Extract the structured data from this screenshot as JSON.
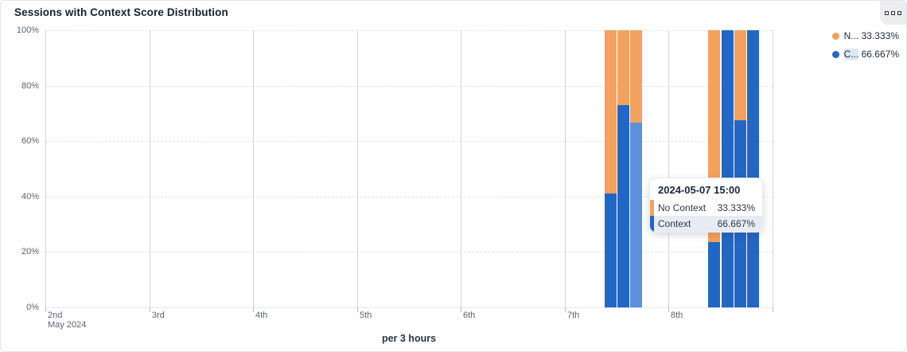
{
  "card": {
    "title": "Sessions with Context Score Distribution",
    "corner_icon": "grid-menu-icon"
  },
  "legend": {
    "items": [
      {
        "name_truncated": "N...",
        "value": "33.333%",
        "color": "#F4A15D",
        "highlighted": false
      },
      {
        "name_truncated": "C...",
        "value": "66.667%",
        "color": "#2267C5",
        "highlighted": true
      }
    ]
  },
  "tooltip": {
    "title": "2024-05-07 15:00",
    "rows": [
      {
        "label": "No Context",
        "value": "33.333%",
        "color": "#F4A15D",
        "highlighted": false
      },
      {
        "label": "Context",
        "value": "66.667%",
        "color": "#2267C5",
        "highlighted": true
      }
    ]
  },
  "chart_data": {
    "type": "bar",
    "stacked": true,
    "unit": "percent",
    "title": "Sessions with Context Score Distribution",
    "xlabel": "per 3 hours",
    "ylabel": "",
    "ylim": [
      0,
      100
    ],
    "grid": true,
    "legend_position": "top-right",
    "y_ticks": [
      "0%",
      "20%",
      "40%",
      "60%",
      "80%",
      "100%"
    ],
    "x_ticks": [
      {
        "label": "2nd",
        "sub": "May 2024"
      },
      {
        "label": "3rd",
        "sub": ""
      },
      {
        "label": "4th",
        "sub": ""
      },
      {
        "label": "5th",
        "sub": ""
      },
      {
        "label": "6th",
        "sub": ""
      },
      {
        "label": "7th",
        "sub": ""
      },
      {
        "label": "8th",
        "sub": ""
      },
      {
        "label": "",
        "sub": ""
      }
    ],
    "series_names": [
      "No Context",
      "Context"
    ],
    "colors": {
      "no_context": "#F4A15D",
      "context": "#2267C5",
      "context_highlight": "#5C90DB"
    },
    "points": [
      {
        "time": "2024-05-07 09:00",
        "context": 41,
        "no_context": 59,
        "highlight": false
      },
      {
        "time": "2024-05-07 12:00",
        "context": 73,
        "no_context": 27,
        "highlight": false
      },
      {
        "time": "2024-05-07 15:00",
        "context": 66.667,
        "no_context": 33.333,
        "highlight": true
      },
      {
        "time": "2024-05-08 09:00",
        "context": 23.5,
        "no_context": 76.5,
        "highlight": false
      },
      {
        "time": "2024-05-08 12:00",
        "context": 100,
        "no_context": 0,
        "highlight": false
      },
      {
        "time": "2024-05-08 15:00",
        "context": 67.6,
        "no_context": 32.4,
        "highlight": false
      },
      {
        "time": "2024-05-08 18:00",
        "context": 100,
        "no_context": 0,
        "highlight": false
      }
    ]
  }
}
